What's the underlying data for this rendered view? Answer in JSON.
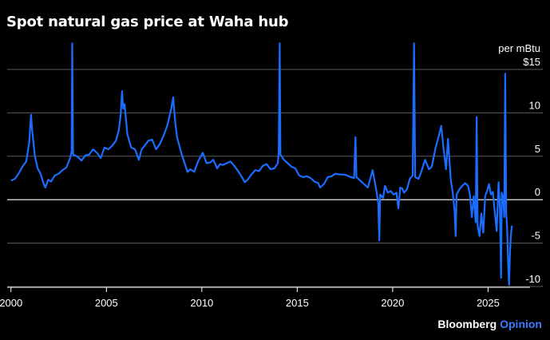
{
  "title": "Spot natural gas price at Waha hub",
  "y_unit_label": "per mBtu",
  "credit": {
    "brand": "Bloomberg",
    "sub": "Opinion"
  },
  "colors": {
    "background": "#000000",
    "line": "#1a6dff",
    "grid": "#5a5a5a",
    "zero": "#ffffff",
    "text": "#ffffff"
  },
  "chart_data": {
    "type": "line",
    "title": "Spot natural gas price at Waha hub",
    "xlabel": "",
    "ylabel": "per mBtu",
    "xlim": [
      1999.8,
      2027.2
    ],
    "ylim": [
      -10,
      16
    ],
    "grid": true,
    "y_ticks": [
      {
        "value": 15,
        "label": "$15"
      },
      {
        "value": 10,
        "label": "10"
      },
      {
        "value": 5,
        "label": "5"
      },
      {
        "value": 0,
        "label": "0"
      },
      {
        "value": -5,
        "label": "-5"
      },
      {
        "value": -10,
        "label": "-10"
      }
    ],
    "x_ticks": [
      {
        "value": 2000,
        "label": "2000"
      },
      {
        "value": 2005,
        "label": "2005"
      },
      {
        "value": 2010,
        "label": "2010"
      },
      {
        "value": 2015,
        "label": "2015"
      },
      {
        "value": 2020,
        "label": "2020"
      },
      {
        "value": 2025,
        "label": "2025"
      }
    ],
    "series": [
      {
        "points": [
          [
            2000.0,
            2.2
          ],
          [
            2000.2,
            2.4
          ],
          [
            2000.4,
            3.0
          ],
          [
            2000.6,
            3.8
          ],
          [
            2000.8,
            4.4
          ],
          [
            2000.95,
            6.5
          ],
          [
            2001.05,
            9.8
          ],
          [
            2001.1,
            8.2
          ],
          [
            2001.25,
            5.0
          ],
          [
            2001.4,
            3.6
          ],
          [
            2001.55,
            3.0
          ],
          [
            2001.7,
            1.9
          ],
          [
            2001.8,
            1.4
          ],
          [
            2001.95,
            2.3
          ],
          [
            2002.1,
            2.1
          ],
          [
            2002.3,
            2.8
          ],
          [
            2002.5,
            3.0
          ],
          [
            2002.7,
            3.4
          ],
          [
            2002.9,
            3.7
          ],
          [
            2003.1,
            4.8
          ],
          [
            2003.18,
            5.6
          ],
          [
            2003.21,
            18.0
          ],
          [
            2003.25,
            5.2
          ],
          [
            2003.45,
            5.0
          ],
          [
            2003.7,
            4.5
          ],
          [
            2003.9,
            5.1
          ],
          [
            2004.1,
            5.2
          ],
          [
            2004.3,
            5.8
          ],
          [
            2004.5,
            5.4
          ],
          [
            2004.7,
            4.8
          ],
          [
            2004.9,
            6.0
          ],
          [
            2005.1,
            5.8
          ],
          [
            2005.3,
            6.2
          ],
          [
            2005.5,
            6.8
          ],
          [
            2005.65,
            8.0
          ],
          [
            2005.75,
            9.8
          ],
          [
            2005.82,
            12.5
          ],
          [
            2005.88,
            10.5
          ],
          [
            2005.95,
            11.0
          ],
          [
            2006.1,
            7.5
          ],
          [
            2006.3,
            6.0
          ],
          [
            2006.5,
            5.8
          ],
          [
            2006.7,
            4.6
          ],
          [
            2006.85,
            5.8
          ],
          [
            2007.0,
            6.2
          ],
          [
            2007.2,
            6.8
          ],
          [
            2007.4,
            6.9
          ],
          [
            2007.6,
            5.8
          ],
          [
            2007.8,
            6.4
          ],
          [
            2008.0,
            7.4
          ],
          [
            2008.2,
            8.6
          ],
          [
            2008.4,
            10.5
          ],
          [
            2008.5,
            11.8
          ],
          [
            2008.6,
            9.0
          ],
          [
            2008.7,
            7.2
          ],
          [
            2008.85,
            6.0
          ],
          [
            2008.95,
            5.2
          ],
          [
            2009.1,
            4.2
          ],
          [
            2009.25,
            3.2
          ],
          [
            2009.4,
            3.5
          ],
          [
            2009.6,
            3.2
          ],
          [
            2009.8,
            4.4
          ],
          [
            2009.95,
            5.0
          ],
          [
            2010.05,
            5.4
          ],
          [
            2010.25,
            4.2
          ],
          [
            2010.45,
            4.3
          ],
          [
            2010.6,
            4.6
          ],
          [
            2010.8,
            3.6
          ],
          [
            2010.95,
            4.1
          ],
          [
            2011.1,
            4.0
          ],
          [
            2011.3,
            4.2
          ],
          [
            2011.5,
            4.4
          ],
          [
            2011.7,
            3.9
          ],
          [
            2011.9,
            3.3
          ],
          [
            2012.1,
            2.6
          ],
          [
            2012.25,
            2.0
          ],
          [
            2012.4,
            2.3
          ],
          [
            2012.6,
            2.9
          ],
          [
            2012.8,
            3.4
          ],
          [
            2013.0,
            3.3
          ],
          [
            2013.2,
            3.9
          ],
          [
            2013.4,
            4.1
          ],
          [
            2013.6,
            3.5
          ],
          [
            2013.8,
            3.6
          ],
          [
            2013.98,
            4.2
          ],
          [
            2014.03,
            5.5
          ],
          [
            2014.08,
            18.0
          ],
          [
            2014.12,
            5.2
          ],
          [
            2014.3,
            4.6
          ],
          [
            2014.5,
            4.2
          ],
          [
            2014.7,
            3.8
          ],
          [
            2014.9,
            3.6
          ],
          [
            2015.1,
            2.8
          ],
          [
            2015.3,
            2.6
          ],
          [
            2015.5,
            2.7
          ],
          [
            2015.7,
            2.5
          ],
          [
            2015.9,
            2.1
          ],
          [
            2016.1,
            1.9
          ],
          [
            2016.2,
            1.4
          ],
          [
            2016.4,
            1.8
          ],
          [
            2016.6,
            2.6
          ],
          [
            2016.8,
            2.7
          ],
          [
            2017.0,
            3.0
          ],
          [
            2017.2,
            2.9
          ],
          [
            2017.4,
            2.9
          ],
          [
            2017.6,
            2.8
          ],
          [
            2017.8,
            2.6
          ],
          [
            2017.98,
            2.5
          ],
          [
            2018.05,
            7.2
          ],
          [
            2018.1,
            2.6
          ],
          [
            2018.3,
            2.2
          ],
          [
            2018.5,
            1.8
          ],
          [
            2018.7,
            1.4
          ],
          [
            2018.85,
            2.6
          ],
          [
            2018.95,
            3.4
          ],
          [
            2019.05,
            2.2
          ],
          [
            2019.15,
            1.0
          ],
          [
            2019.25,
            -0.5
          ],
          [
            2019.3,
            -4.7
          ],
          [
            2019.35,
            0.6
          ],
          [
            2019.5,
            0.2
          ],
          [
            2019.6,
            1.6
          ],
          [
            2019.75,
            0.8
          ],
          [
            2019.9,
            1.0
          ],
          [
            2020.05,
            0.6
          ],
          [
            2020.2,
            0.8
          ],
          [
            2020.3,
            -1.0
          ],
          [
            2020.4,
            1.4
          ],
          [
            2020.5,
            1.3
          ],
          [
            2020.6,
            0.8
          ],
          [
            2020.75,
            1.2
          ],
          [
            2020.9,
            2.4
          ],
          [
            2021.05,
            2.8
          ],
          [
            2021.12,
            18.0
          ],
          [
            2021.18,
            2.6
          ],
          [
            2021.35,
            2.4
          ],
          [
            2021.5,
            3.2
          ],
          [
            2021.7,
            4.6
          ],
          [
            2021.9,
            3.5
          ],
          [
            2022.05,
            3.8
          ],
          [
            2022.25,
            6.0
          ],
          [
            2022.4,
            7.2
          ],
          [
            2022.55,
            8.5
          ],
          [
            2022.65,
            6.2
          ],
          [
            2022.8,
            3.5
          ],
          [
            2022.9,
            7.0
          ],
          [
            2023.05,
            2.2
          ],
          [
            2023.15,
            0.8
          ],
          [
            2023.25,
            -1.4
          ],
          [
            2023.3,
            -4.2
          ],
          [
            2023.35,
            0.6
          ],
          [
            2023.5,
            1.2
          ],
          [
            2023.65,
            1.6
          ],
          [
            2023.8,
            1.9
          ],
          [
            2023.95,
            1.6
          ],
          [
            2024.05,
            0.6
          ],
          [
            2024.15,
            -2.0
          ],
          [
            2024.25,
            0.4
          ],
          [
            2024.35,
            -2.6
          ],
          [
            2024.4,
            9.5
          ],
          [
            2024.45,
            -3.0
          ],
          [
            2024.55,
            -4.2
          ],
          [
            2024.65,
            -1.6
          ],
          [
            2024.75,
            -3.8
          ],
          [
            2024.85,
            0.4
          ],
          [
            2024.95,
            1.0
          ],
          [
            2025.05,
            1.8
          ],
          [
            2025.15,
            0.6
          ],
          [
            2025.25,
            0.9
          ],
          [
            2025.35,
            -1.4
          ],
          [
            2025.45,
            -3.6
          ],
          [
            2025.55,
            2.0
          ],
          [
            2025.62,
            -1.0
          ],
          [
            2025.68,
            -9.0
          ],
          [
            2025.72,
            0.8
          ],
          [
            2025.78,
            0.4
          ],
          [
            2025.85,
            -2.0
          ],
          [
            2025.9,
            14.5
          ],
          [
            2025.95,
            -1.5
          ],
          [
            2026.0,
            -3.2
          ],
          [
            2026.05,
            -7.2
          ],
          [
            2026.1,
            -9.8
          ],
          [
            2026.15,
            -6.0
          ],
          [
            2026.2,
            -4.0
          ],
          [
            2026.25,
            -3.0
          ]
        ]
      }
    ]
  }
}
